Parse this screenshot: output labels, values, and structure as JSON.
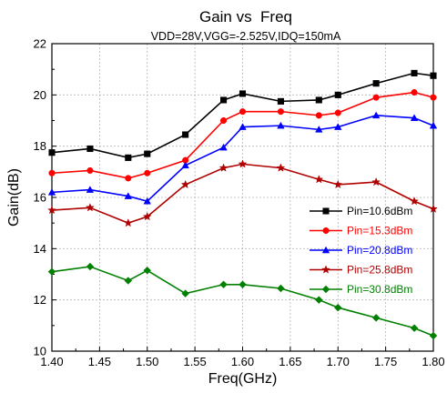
{
  "chart_data": {
    "type": "line",
    "title": "Gain vs  Freq",
    "subtitle": "VDD=28V,VGG=-2.525V,IDQ=150mA",
    "xlabel": "Freq(GHz)",
    "ylabel": "Gain(dB)",
    "xlim": [
      1.4,
      1.8
    ],
    "ylim": [
      10,
      22
    ],
    "x_ticks": [
      "1.40",
      "1.45",
      "1.50",
      "1.55",
      "1.60",
      "1.65",
      "1.70",
      "1.75",
      "1.80"
    ],
    "y_ticks": [
      "10",
      "12",
      "14",
      "16",
      "18",
      "20",
      "22"
    ],
    "grid": true,
    "legend_position": "right",
    "x": [
      1.4,
      1.44,
      1.48,
      1.5,
      1.54,
      1.58,
      1.6,
      1.64,
      1.68,
      1.7,
      1.74,
      1.78,
      1.8
    ],
    "series": [
      {
        "name": "Pin=10.6dBm",
        "color": "#000000",
        "marker": "square",
        "values": [
          17.75,
          17.9,
          17.55,
          17.7,
          18.45,
          19.8,
          20.05,
          19.75,
          19.8,
          20.0,
          20.45,
          20.85,
          20.75
        ]
      },
      {
        "name": "Pin=15.3dBm",
        "color": "#ff0000",
        "marker": "circle",
        "values": [
          16.95,
          17.05,
          16.75,
          16.95,
          17.45,
          19.0,
          19.35,
          19.35,
          19.2,
          19.3,
          19.9,
          20.1,
          19.9
        ]
      },
      {
        "name": "Pin=20.8dBm",
        "color": "#0000ff",
        "marker": "triangle",
        "values": [
          16.2,
          16.3,
          16.05,
          15.85,
          17.25,
          17.95,
          18.75,
          18.8,
          18.65,
          18.75,
          19.2,
          19.1,
          18.8
        ]
      },
      {
        "name": "Pin=25.8dBm",
        "color": "#b00000",
        "marker": "star",
        "values": [
          15.5,
          15.6,
          15.0,
          15.25,
          16.5,
          17.15,
          17.3,
          17.15,
          16.7,
          16.5,
          16.6,
          15.85,
          15.55
        ]
      },
      {
        "name": "Pin=30.8dBm",
        "color": "#008000",
        "marker": "diamond",
        "values": [
          13.1,
          13.3,
          12.75,
          13.15,
          12.25,
          12.6,
          12.6,
          12.45,
          12.0,
          11.7,
          11.3,
          10.9,
          10.6
        ]
      }
    ]
  }
}
